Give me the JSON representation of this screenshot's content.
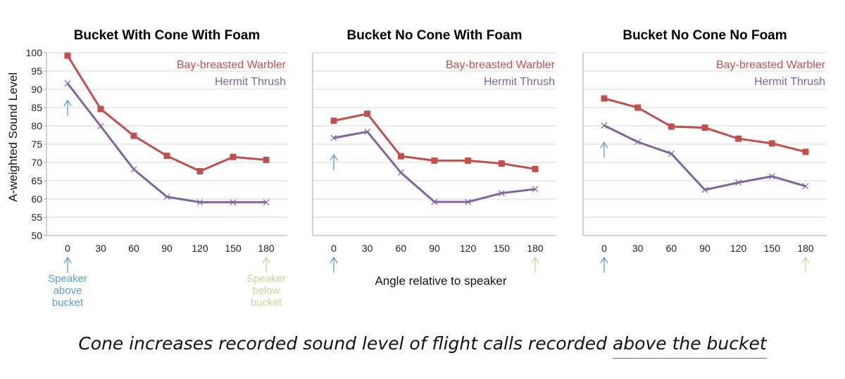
{
  "colors": {
    "series_1": "#c0504d",
    "series_2": "#8064a2",
    "speaker_above": "#5b9bd5",
    "speaker_below": "#c4d79b",
    "grid": "#d9d9d9",
    "frame": "#a6a6a6",
    "underline": "#4472c4"
  },
  "shared": {
    "ylabel": "A-weighted Sound Level",
    "xlabel": "Angle relative to speaker",
    "note_above": [
      "Speaker",
      "above",
      "bucket"
    ],
    "note_below": [
      "Speaker",
      "below",
      "bucket"
    ]
  },
  "caption": {
    "prefix": "Cone increases recorded sound level of flight calls recorded ",
    "highlight": "above the bucket"
  },
  "chart_data": [
    {
      "type": "line",
      "title": "Bucket With Cone With Foam",
      "x": [
        0,
        30,
        60,
        90,
        120,
        150,
        180
      ],
      "ylim": [
        50,
        100
      ],
      "yticks": [
        50,
        55,
        60,
        65,
        70,
        75,
        80,
        85,
        90,
        95,
        100
      ],
      "show_yticks": true,
      "grid": true,
      "legend": "top-right",
      "series": [
        {
          "name": "Bay-breasted Warbler",
          "marker": "square",
          "values": [
            99.2,
            84.6,
            77.3,
            71.8,
            67.6,
            71.5,
            70.7
          ]
        },
        {
          "name": "Hermit Thrush",
          "marker": "x",
          "values": [
            91.6,
            79.9,
            68.1,
            60.6,
            59.1,
            59.1,
            59.1
          ]
        }
      ]
    },
    {
      "type": "line",
      "title": "Bucket No Cone With Foam",
      "x": [
        0,
        30,
        60,
        90,
        120,
        150,
        180
      ],
      "ylim": [
        50,
        100
      ],
      "yticks": [
        50,
        55,
        60,
        65,
        70,
        75,
        80,
        85,
        90,
        95,
        100
      ],
      "show_yticks": false,
      "grid": true,
      "legend": "top-right",
      "series": [
        {
          "name": "Bay-breasted Warbler",
          "marker": "square",
          "values": [
            81.4,
            83.3,
            71.7,
            70.5,
            70.5,
            69.7,
            68.2
          ]
        },
        {
          "name": "Hermit Thrush",
          "marker": "x",
          "values": [
            76.7,
            78.4,
            67.2,
            59.2,
            59.2,
            61.6,
            62.7
          ]
        }
      ]
    },
    {
      "type": "line",
      "title": "Bucket No Cone No Foam",
      "x": [
        0,
        30,
        60,
        90,
        120,
        150,
        180
      ],
      "ylim": [
        50,
        100
      ],
      "yticks": [
        50,
        55,
        60,
        65,
        70,
        75,
        80,
        85,
        90,
        95,
        100
      ],
      "show_yticks": false,
      "grid": true,
      "legend": "top-right",
      "series": [
        {
          "name": "Bay-breasted Warbler",
          "marker": "square",
          "values": [
            87.5,
            85.0,
            79.8,
            79.5,
            76.5,
            75.2,
            72.9
          ]
        },
        {
          "name": "Hermit Thrush",
          "marker": "x",
          "values": [
            80.1,
            75.6,
            72.4,
            62.5,
            64.5,
            66.2,
            63.5
          ]
        }
      ]
    }
  ]
}
